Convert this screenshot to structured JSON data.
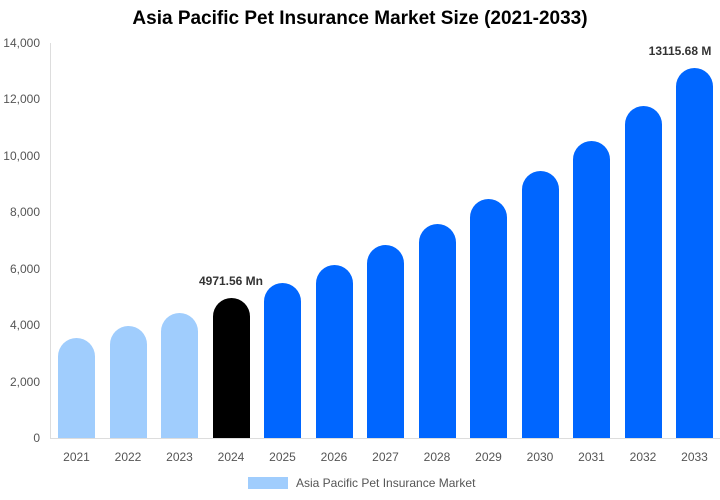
{
  "title": "Asia Pacific Pet Insurance Market Size (2021-2033)",
  "chart_data": {
    "type": "bar",
    "title": "Asia Pacific Pet Insurance Market Size (2021-2033)",
    "xlabel": "",
    "ylabel": "",
    "ylim": [
      0,
      14000
    ],
    "yticks": [
      "0",
      "2,000",
      "4,000",
      "6,000",
      "8,000",
      "10,000",
      "12,000",
      "14,000"
    ],
    "categories": [
      "2021",
      "2022",
      "2023",
      "2024",
      "2025",
      "2026",
      "2027",
      "2028",
      "2029",
      "2030",
      "2031",
      "2032",
      "2033"
    ],
    "series": [
      {
        "name": "Asia Pacific Pet Insurance Market",
        "values": [
          3545,
          3970,
          4430,
          4971.56,
          5495,
          6130,
          6840,
          7585,
          8470,
          9465,
          10530,
          11770,
          13115.68
        ]
      }
    ],
    "bar_colors": [
      "#a0cdfd",
      "#a0cdfd",
      "#a0cdfd",
      "#000000",
      "#0066ff",
      "#0066ff",
      "#0066ff",
      "#0066ff",
      "#0066ff",
      "#0066ff",
      "#0066ff",
      "#0066ff",
      "#0066ff"
    ],
    "annotations": [
      {
        "index": 3,
        "text": "4971.56 Mn"
      },
      {
        "index": 12,
        "text": "13115.68 M"
      }
    ],
    "grid": false,
    "legend_position": "bottom"
  },
  "legend": {
    "label": "Asia Pacific Pet Insurance Market",
    "color": "#a0cdfd"
  }
}
